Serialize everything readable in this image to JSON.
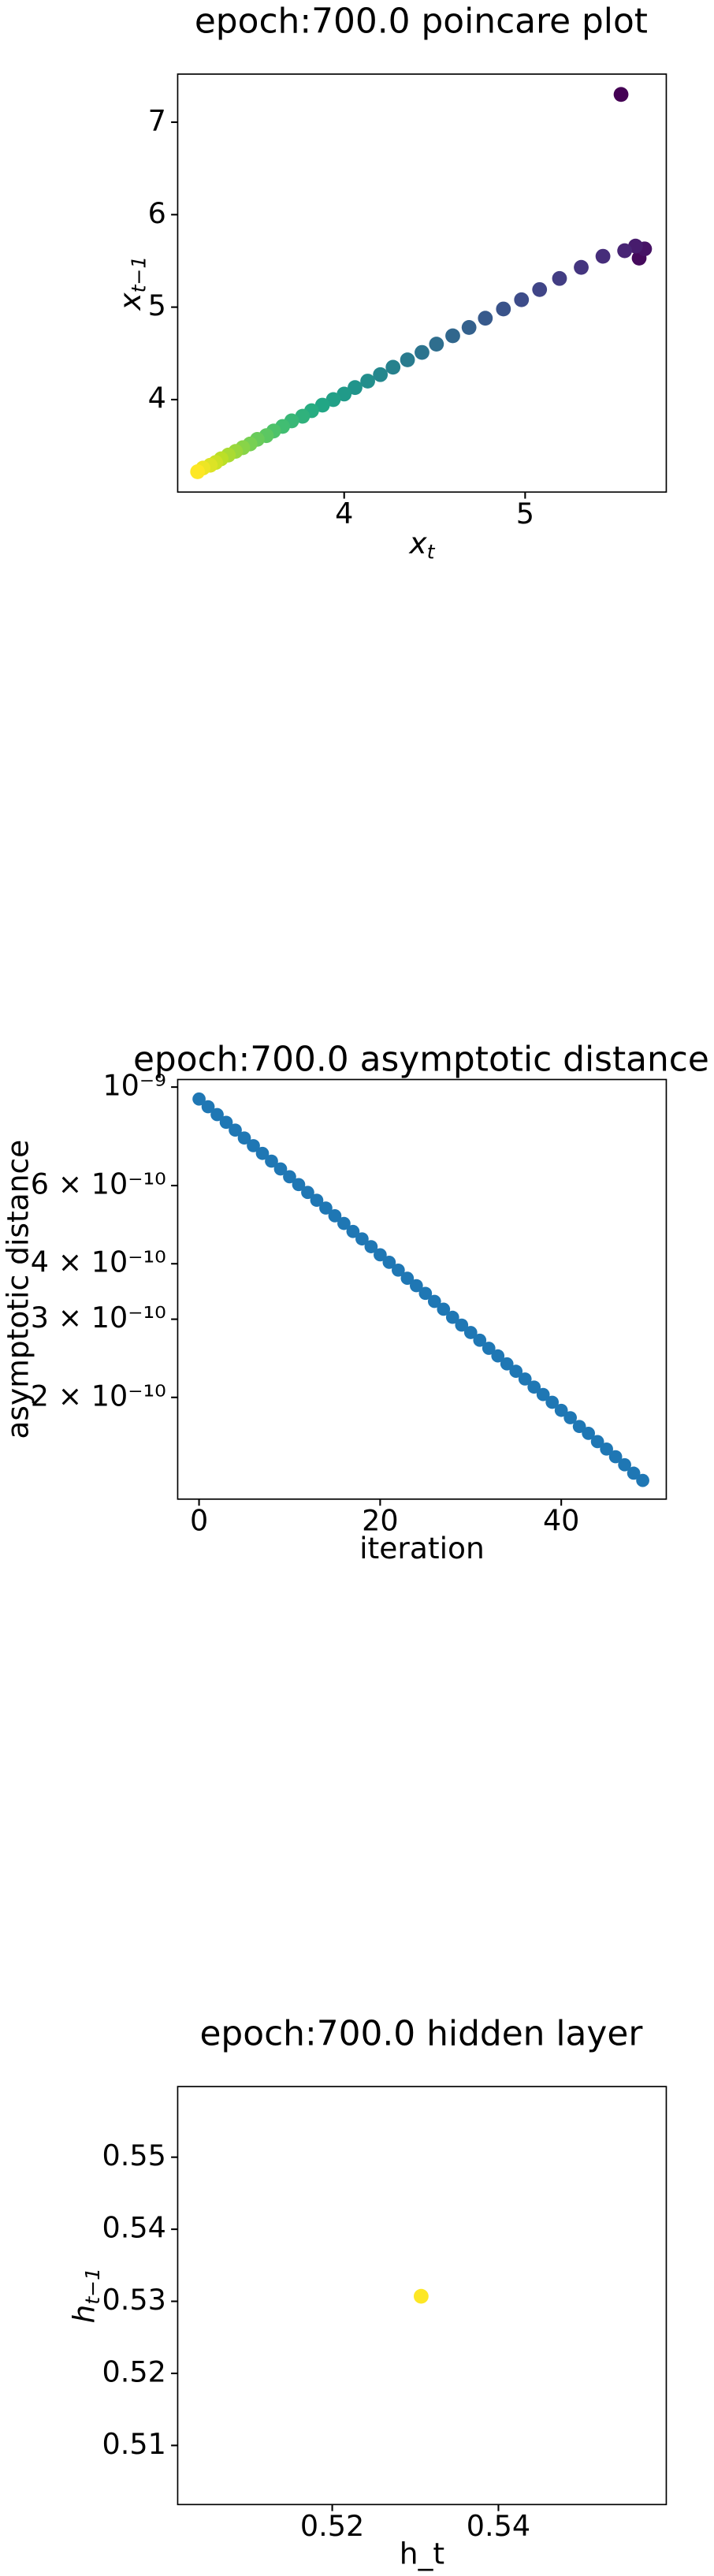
{
  "chart_data": [
    {
      "type": "scatter",
      "title": "epoch:700.0 poincare plot",
      "xlabel": {
        "text": "x",
        "subscript": "t"
      },
      "ylabel": {
        "text": "x",
        "subscript": "t−1"
      },
      "x": [
        5.53,
        5.63,
        5.66,
        5.61,
        5.55,
        5.43,
        5.31,
        5.19,
        5.08,
        4.98,
        4.88,
        4.78,
        4.69,
        4.6,
        4.51,
        4.43,
        4.35,
        4.27,
        4.2,
        4.13,
        4.06,
        4.0,
        3.94,
        3.88,
        3.82,
        3.77,
        3.71,
        3.66,
        3.61,
        3.57,
        3.52,
        3.48,
        3.44,
        3.4,
        3.36,
        3.32,
        3.29,
        3.26,
        3.22,
        3.19
      ],
      "y": [
        7.3,
        5.53,
        5.63,
        5.66,
        5.61,
        5.55,
        5.43,
        5.31,
        5.19,
        5.08,
        4.98,
        4.88,
        4.78,
        4.69,
        4.6,
        4.51,
        4.43,
        4.35,
        4.27,
        4.2,
        4.13,
        4.06,
        4.0,
        3.94,
        3.88,
        3.82,
        3.77,
        3.71,
        3.66,
        3.61,
        3.57,
        3.52,
        3.48,
        3.44,
        3.4,
        3.36,
        3.32,
        3.29,
        3.26,
        3.22
      ],
      "colormap": [
        "#440154",
        "#482475",
        "#414487",
        "#355f8d",
        "#2a788e",
        "#21918c",
        "#22a884",
        "#44bf70",
        "#7ad151",
        "#bddf26",
        "#fde725"
      ],
      "xlim": [
        3.08,
        5.78
      ],
      "xticks": [
        4,
        5
      ],
      "ylim": [
        3.0,
        7.52
      ],
      "yticks": [
        4,
        5,
        6,
        7
      ],
      "log_y": false,
      "grid": false
    },
    {
      "type": "scatter",
      "title": "epoch:700.0 asymptotic distance",
      "xlabel": "iteration",
      "ylabel": "asymptotic distance",
      "x": [
        0,
        1,
        2,
        3,
        4,
        5,
        6,
        7,
        8,
        9,
        10,
        11,
        12,
        13,
        14,
        15,
        16,
        17,
        18,
        19,
        20,
        21,
        22,
        23,
        24,
        25,
        26,
        27,
        28,
        29,
        30,
        31,
        32,
        33,
        34,
        35,
        36,
        37,
        38,
        39,
        40,
        41,
        42,
        43,
        44,
        45,
        46,
        47,
        48,
        49
      ],
      "y": [
        9.4e-10,
        9.03e-10,
        8.67e-10,
        8.33e-10,
        8e-10,
        7.68e-10,
        7.38e-10,
        7.09e-10,
        6.81e-10,
        6.54e-10,
        6.28e-10,
        6.03e-10,
        5.79e-10,
        5.56e-10,
        5.34e-10,
        5.13e-10,
        4.93e-10,
        4.73e-10,
        4.55e-10,
        4.37e-10,
        4.19e-10,
        4.03e-10,
        3.87e-10,
        3.71e-10,
        3.57e-10,
        3.43e-10,
        3.29e-10,
        3.16e-10,
        3.03e-10,
        2.91e-10,
        2.8e-10,
        2.69e-10,
        2.58e-10,
        2.48e-10,
        2.38e-10,
        2.29e-10,
        2.2e-10,
        2.11e-10,
        2.03e-10,
        1.95e-10,
        1.87e-10,
        1.8e-10,
        1.72e-10,
        1.66e-10,
        1.59e-10,
        1.53e-10,
        1.47e-10,
        1.41e-10,
        1.35e-10,
        1.3e-10
      ],
      "color": "#1f77b4",
      "xlim": [
        -2.36,
        51.6
      ],
      "xticks": [
        0,
        20,
        40
      ],
      "ylim": [
        1.18e-10,
        1.04e-09
      ],
      "log_y": true,
      "yticks": [
        {
          "value": 1e-09,
          "label": "10⁻⁹"
        },
        {
          "value": 6e-10,
          "label": "6 × 10⁻¹⁰"
        },
        {
          "value": 4e-10,
          "label": "4 × 10⁻¹⁰"
        },
        {
          "value": 3e-10,
          "label": "3 × 10⁻¹⁰"
        },
        {
          "value": 2e-10,
          "label": "2 × 10⁻¹⁰"
        }
      ],
      "grid": false
    },
    {
      "type": "scatter",
      "title": "epoch:700.0 hidden layer",
      "xlabel": "h_t",
      "ylabel": {
        "text": "h",
        "subscript": "t−1"
      },
      "x": [
        0.5307
      ],
      "y": [
        0.5307
      ],
      "color": "#fde725",
      "xlim": [
        0.5014,
        0.5602
      ],
      "xticks": [
        0.52,
        0.54
      ],
      "ylim": [
        0.5018,
        0.5598
      ],
      "yticks": [
        0.51,
        0.52,
        0.53,
        0.54,
        0.55
      ],
      "log_y": false,
      "grid": false
    }
  ]
}
